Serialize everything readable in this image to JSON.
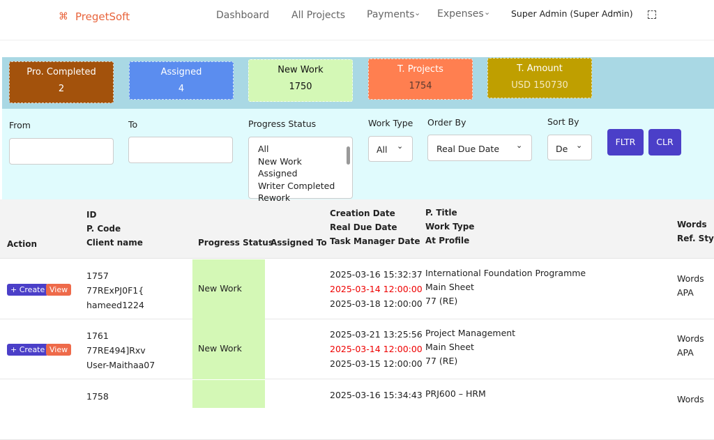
{
  "nav": {
    "brand": "PregetSoft",
    "links": [
      "Dashboard",
      "All Projects",
      "Payments",
      "Expenses",
      "Super Admin (Super Admin)"
    ]
  },
  "cards": [
    {
      "label": "Pro. Completed",
      "value": "2"
    },
    {
      "label": "Assigned",
      "value": "4"
    },
    {
      "label": "New Work",
      "value": "1750"
    },
    {
      "label": "T. Projects",
      "value": "1754"
    },
    {
      "label": "T. Amount",
      "value": "USD 150730"
    }
  ],
  "filters": {
    "from": "From",
    "to": "To",
    "progress_status": "Progress Status",
    "progress_options": [
      "All",
      "New Work",
      "Assigned",
      "Writer Completed",
      "Rework"
    ],
    "work_type": "Work Type",
    "work_type_value": "All",
    "order_by": "Order By",
    "order_by_value": "Real Due Date",
    "sort_by": "Sort By",
    "sort_by_value": "De",
    "buttons": [
      "FLTR",
      "CLR"
    ]
  },
  "table": {
    "headers": {
      "action": "Action",
      "id": [
        "ID",
        "P. Code",
        "Client name"
      ],
      "progress_status": "Progress Status",
      "assigned_to": "Assigned To",
      "dates": [
        "Creation Date",
        "Real Due Date",
        "Task Manager Date"
      ],
      "title": [
        "P. Title",
        "Work Type",
        "At Profile"
      ],
      "words": [
        "Words",
        "Ref. Style"
      ]
    },
    "actions": [
      "+ Create",
      "View"
    ],
    "rows": [
      {
        "id": [
          "1757",
          "77RExPJ0F1{",
          "hameed1224"
        ],
        "status": "New Work",
        "dates": [
          "2025-03-16 15:32:37",
          "2025-03-14 12:00:00",
          "2025-03-18 12:00:00"
        ],
        "title": [
          "International Foundation Programme",
          "Main Sheet",
          "77 (RE)"
        ],
        "words": [
          "Words",
          "APA"
        ]
      },
      {
        "id": [
          "1761",
          "77RE494]Rxv",
          "User-Maithaa07"
        ],
        "status": "New Work",
        "dates": [
          "2025-03-21 13:25:56",
          "2025-03-14 12:00:00",
          "2025-03-15 12:00:00"
        ],
        "title": [
          "Project Management",
          "Main Sheet",
          "77 (RE)"
        ],
        "words": [
          "Words",
          "APA"
        ]
      },
      {
        "id": [
          "1758"
        ],
        "dates": [
          "2025-03-16 15:34:43"
        ],
        "title": [
          "PRJ600 – HRM"
        ],
        "words": [
          "Words"
        ]
      }
    ]
  }
}
